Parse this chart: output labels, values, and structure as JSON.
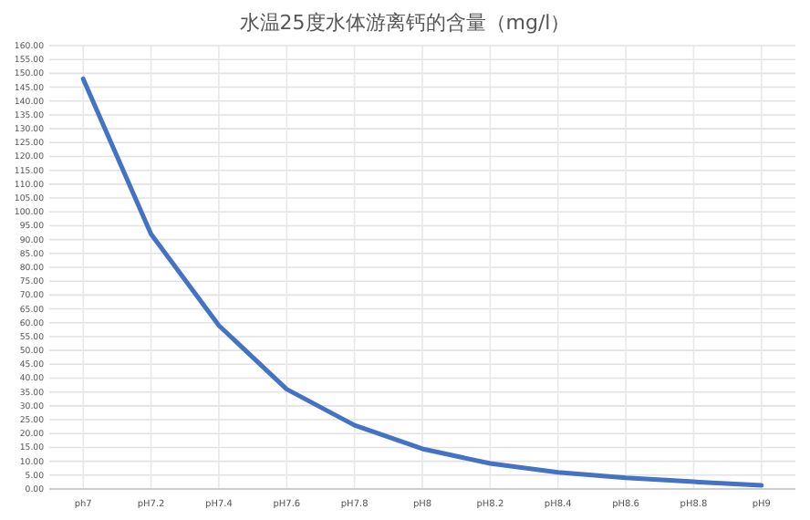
{
  "chart_data": {
    "type": "line",
    "title": "水温25度水体游离钙的含量（mg/l）",
    "categories": [
      "ph7",
      "pH7.2",
      "pH7.4",
      "pH7.6",
      "pH7.8",
      "pH8",
      "pH8.2",
      "pH8.4",
      "pH8.6",
      "pH8.8",
      "pH9"
    ],
    "series": [
      {
        "color": "#4472c4",
        "values": [
          148,
          92,
          59,
          36,
          23,
          14.5,
          9.2,
          6,
          4,
          2.6,
          1.3
        ]
      }
    ],
    "ylim": [
      0,
      160
    ],
    "yticks": [
      {
        "value": 0,
        "label": "0.00"
      },
      {
        "value": 5,
        "label": "5.00"
      },
      {
        "value": 10,
        "label": "10.00"
      },
      {
        "value": 15,
        "label": "15.00"
      },
      {
        "value": 20,
        "label": "20.00"
      },
      {
        "value": 25,
        "label": "25.00"
      },
      {
        "value": 30,
        "label": "30.00"
      },
      {
        "value": 35,
        "label": "35.00"
      },
      {
        "value": 40,
        "label": "40.00"
      },
      {
        "value": 45,
        "label": "45.00"
      },
      {
        "value": 50,
        "label": "50.00"
      },
      {
        "value": 55,
        "label": "55.00"
      },
      {
        "value": 60,
        "label": "60.00"
      },
      {
        "value": 65,
        "label": "65.00"
      },
      {
        "value": 70,
        "label": "70.00"
      },
      {
        "value": 75,
        "label": "75.00"
      },
      {
        "value": 80,
        "label": "80.00"
      },
      {
        "value": 85,
        "label": "85.00"
      },
      {
        "value": 90,
        "label": "90.00"
      },
      {
        "value": 95,
        "label": "95.00"
      },
      {
        "value": 100,
        "label": "100.00"
      },
      {
        "value": 105,
        "label": "105.00"
      },
      {
        "value": 110,
        "label": "110.00"
      },
      {
        "value": 115,
        "label": "115.00"
      },
      {
        "value": 120,
        "label": "120.00"
      },
      {
        "value": 125,
        "label": "125.00"
      },
      {
        "value": 130,
        "label": "130.00"
      },
      {
        "value": 135,
        "label": "135.00"
      },
      {
        "value": 140,
        "label": "140.00"
      },
      {
        "value": 145,
        "label": "145.00"
      },
      {
        "value": 150,
        "label": "150.00"
      },
      {
        "value": 155,
        "label": "155.00"
      },
      {
        "value": 160,
        "label": "160.00"
      }
    ],
    "grid": true,
    "marker": "none",
    "line_style": "solid",
    "legend": false
  }
}
